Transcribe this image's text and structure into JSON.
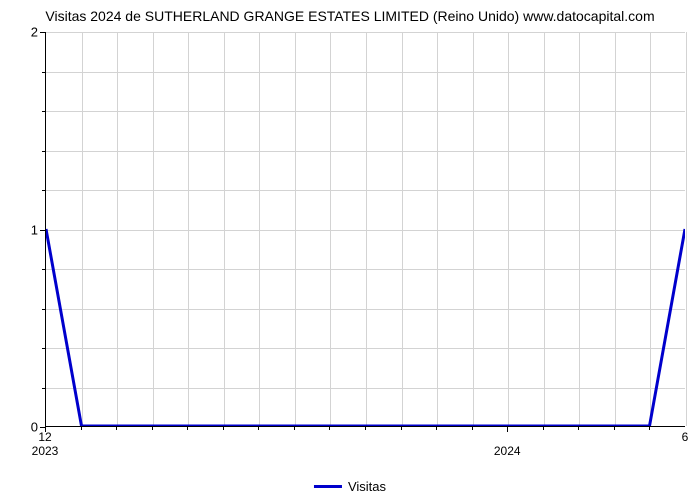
{
  "chart": {
    "type": "line",
    "title": "Visitas 2024 de SUTHERLAND GRANGE ESTATES LIMITED (Reino Unido) www.datocapital.com",
    "title_fontsize": 14,
    "background_color": "#ffffff",
    "grid_color": "#d3d3d3",
    "axis_color": "#000000",
    "series": {
      "label": "Visitas",
      "color": "#0000cc",
      "line_width": 3,
      "x_index": [
        0,
        1,
        17,
        18
      ],
      "y_values": [
        1,
        0,
        0,
        1
      ]
    },
    "x_axis": {
      "total_slots": 19,
      "major_ticks": [
        {
          "pos": 0,
          "secondary": "12",
          "main": "2023"
        },
        {
          "pos": 13,
          "secondary": "",
          "main": "2024"
        }
      ],
      "end_label": {
        "pos": 18,
        "secondary": "6"
      },
      "minor_tick_positions": [
        1,
        2,
        3,
        4,
        5,
        6,
        7,
        8,
        9,
        10,
        11,
        12,
        14,
        15,
        16,
        17
      ]
    },
    "y_axis": {
      "ylim": [
        0,
        2
      ],
      "major_ticks": [
        0,
        1,
        2
      ],
      "minor_tick_count_between": 4
    },
    "legend_fontsize": 13
  }
}
